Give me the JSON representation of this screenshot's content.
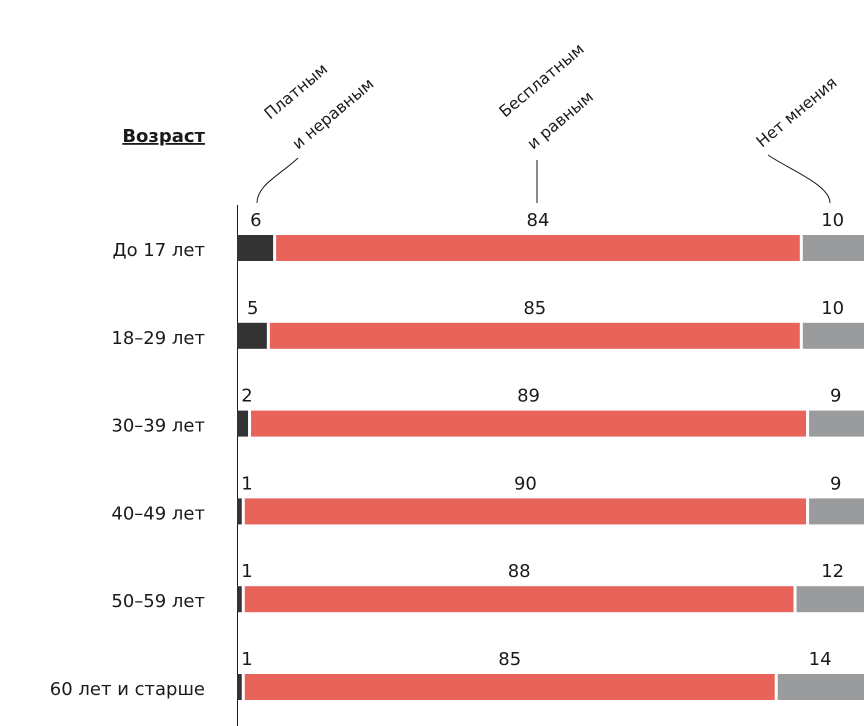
{
  "chart_data": {
    "type": "stacked_bar_horizontal",
    "axis_label": "Возраст",
    "categories": [
      "До 17 лет",
      "18–29 лет",
      "30–39 лет",
      "40–49 лет",
      "50–59 лет",
      "60 лет и старше"
    ],
    "series": [
      {
        "name": "Платным и неравным",
        "color": "#333333",
        "values": [
          6,
          5,
          2,
          1,
          1,
          1
        ]
      },
      {
        "name": "Бесплатным и равным",
        "color": "#e8645a",
        "values": [
          84,
          85,
          89,
          90,
          88,
          85
        ]
      },
      {
        "name": "Нет мнения",
        "color": "#9a9b9d",
        "values": [
          10,
          10,
          9,
          9,
          12,
          14
        ]
      }
    ],
    "xlim": [
      0,
      100
    ]
  }
}
